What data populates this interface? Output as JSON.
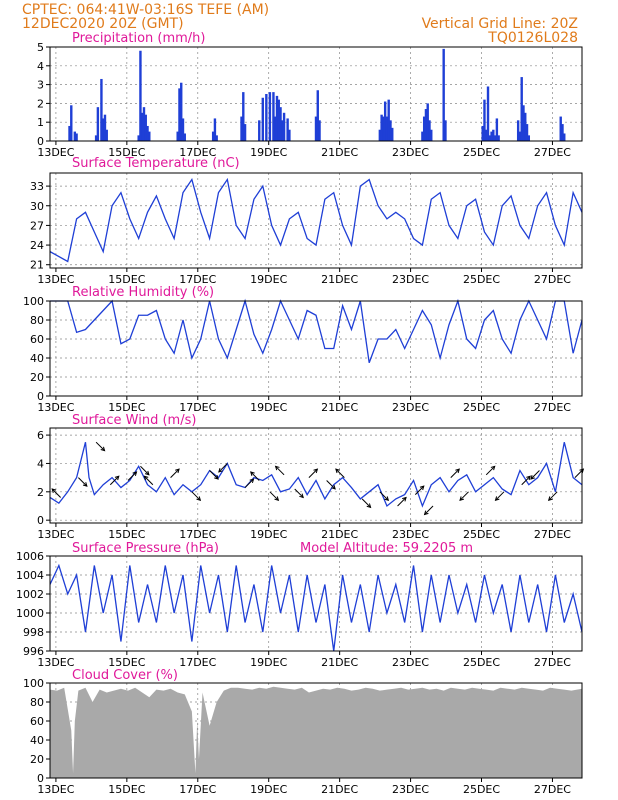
{
  "header": {
    "line1": "CPTEC:   064:41W-03:16S   TEFE (AM)",
    "line2": "12DEC2020 20Z (GMT)",
    "grid_note": "Vertical Grid Line: 20Z",
    "code": "TQ0126L028"
  },
  "x_axis": {
    "unit": "days since 12DEC2020 20Z",
    "range": [
      0,
      15
    ],
    "ticks": [
      {
        "t": 0.1667,
        "label": "13DEC"
      },
      {
        "t": 2.1667,
        "label": "15DEC"
      },
      {
        "t": 4.1667,
        "label": "17DEC"
      },
      {
        "t": 6.1667,
        "label": "19DEC"
      },
      {
        "t": 8.1667,
        "label": "21DEC"
      },
      {
        "t": 10.1667,
        "label": "23DEC"
      },
      {
        "t": 12.1667,
        "label": "25DEC"
      },
      {
        "t": 14.1667,
        "label": "27DEC"
      }
    ]
  },
  "colors": {
    "header": "#e07b1b",
    "title": "#e0199a",
    "line": "#1f3fd6",
    "bar": "#1f3fd6",
    "cloud": "#a9a9a9"
  },
  "chart_data": [
    {
      "type": "bar",
      "title": "Precipitation (mm/h)",
      "ylim": [
        0,
        5
      ],
      "yticks": [
        0,
        1,
        2,
        3,
        4,
        5
      ],
      "series": [
        {
          "name": "Precipitation",
          "x": [
            0.55,
            0.6,
            0.7,
            0.75,
            1.3,
            1.35,
            1.45,
            1.5,
            1.55,
            1.6,
            2.5,
            2.55,
            2.6,
            2.65,
            2.7,
            2.75,
            2.8,
            3.6,
            3.65,
            3.7,
            3.75,
            3.8,
            4.6,
            4.65,
            4.7,
            5.4,
            5.45,
            5.5,
            5.9,
            6.0,
            6.1,
            6.2,
            6.3,
            6.35,
            6.4,
            6.45,
            6.5,
            6.55,
            6.6,
            6.7,
            6.75,
            7.5,
            7.55,
            7.6,
            9.3,
            9.35,
            9.4,
            9.45,
            9.5,
            9.55,
            9.6,
            9.65,
            10.5,
            10.55,
            10.6,
            10.65,
            10.7,
            10.75,
            11.1,
            11.15,
            12.2,
            12.25,
            12.3,
            12.35,
            12.4,
            12.45,
            12.5,
            12.55,
            12.6,
            12.65,
            13.2,
            13.25,
            13.3,
            13.35,
            13.4,
            13.45,
            13.5,
            14.4,
            14.45,
            14.5
          ],
          "values": [
            0.8,
            1.9,
            0.5,
            0.4,
            0.3,
            1.8,
            3.3,
            1.2,
            1.4,
            0.6,
            0.3,
            4.8,
            1.5,
            1.8,
            1.4,
            0.8,
            0.5,
            0.5,
            2.8,
            3.1,
            1.2,
            0.4,
            0.5,
            1.2,
            0.3,
            1.3,
            2.6,
            0.9,
            1.1,
            2.3,
            2.5,
            2.6,
            2.6,
            1.3,
            2.4,
            2.2,
            1.8,
            1.1,
            1.5,
            1.2,
            0.6,
            1.3,
            2.7,
            1.1,
            0.6,
            1.4,
            1.3,
            2.1,
            1.3,
            2.2,
            1.1,
            0.7,
            0.5,
            1.3,
            1.7,
            2.0,
            1.1,
            0.6,
            4.9,
            1.1,
            0.8,
            2.2,
            0.6,
            2.9,
            0.3,
            0.5,
            0.6,
            0.3,
            1.2,
            0.3,
            1.1,
            0.5,
            3.4,
            1.9,
            1.5,
            0.9,
            0.3,
            1.3,
            0.9,
            0.4
          ]
        }
      ]
    },
    {
      "type": "line",
      "title": "Surface Temperature (nC)",
      "ylim": [
        20.5,
        35
      ],
      "yticks": [
        21,
        24,
        27,
        30,
        33
      ],
      "series": [
        {
          "name": "Temperature",
          "x": [
            0,
            0.5,
            0.75,
            1.0,
            1.25,
            1.5,
            1.75,
            2.0,
            2.25,
            2.5,
            2.75,
            3.0,
            3.25,
            3.5,
            3.75,
            4.0,
            4.25,
            4.5,
            4.75,
            5.0,
            5.25,
            5.5,
            5.75,
            6.0,
            6.25,
            6.5,
            6.75,
            7.0,
            7.25,
            7.5,
            7.75,
            8.0,
            8.25,
            8.5,
            8.75,
            9.0,
            9.25,
            9.5,
            9.75,
            10.0,
            10.25,
            10.5,
            10.75,
            11.0,
            11.25,
            11.5,
            11.75,
            12.0,
            12.25,
            12.5,
            12.75,
            13.0,
            13.25,
            13.5,
            13.75,
            14.0,
            14.25,
            14.5,
            14.75,
            15.0
          ],
          "values": [
            23,
            21.5,
            28,
            29,
            26,
            23,
            30,
            32,
            28,
            25,
            29,
            31.5,
            28,
            25,
            32,
            34,
            29,
            25,
            32,
            34,
            27,
            25,
            31,
            33,
            27,
            24,
            28,
            29,
            25,
            24,
            31,
            32,
            27,
            24,
            33,
            34,
            30,
            28,
            29,
            28,
            25,
            24,
            31,
            32,
            27,
            25,
            30,
            31,
            26,
            24,
            30,
            31.5,
            27,
            25,
            30,
            32,
            27,
            24,
            32,
            29
          ]
        }
      ]
    },
    {
      "type": "line",
      "title": "Relative Humidity (%)",
      "ylim": [
        0,
        100
      ],
      "yticks": [
        0,
        20,
        40,
        60,
        80,
        100
      ],
      "series": [
        {
          "name": "Relative Humidity",
          "x": [
            0,
            0.5,
            0.75,
            1.0,
            1.25,
            1.5,
            1.75,
            2.0,
            2.25,
            2.5,
            2.75,
            3.0,
            3.25,
            3.5,
            3.75,
            4.0,
            4.25,
            4.5,
            4.75,
            5.0,
            5.25,
            5.5,
            5.75,
            6.0,
            6.25,
            6.5,
            6.75,
            7.0,
            7.25,
            7.5,
            7.75,
            8.0,
            8.25,
            8.5,
            8.75,
            9.0,
            9.25,
            9.5,
            9.75,
            10.0,
            10.25,
            10.5,
            10.75,
            11.0,
            11.25,
            11.5,
            11.75,
            12.0,
            12.25,
            12.5,
            12.75,
            13.0,
            13.25,
            13.5,
            13.75,
            14.0,
            14.25,
            14.5,
            14.75,
            15.0
          ],
          "values": [
            100,
            100,
            67,
            70,
            80,
            90,
            100,
            55,
            60,
            85,
            85,
            90,
            60,
            45,
            80,
            40,
            60,
            100,
            60,
            40,
            70,
            100,
            65,
            45,
            70,
            100,
            80,
            60,
            90,
            85,
            50,
            50,
            95,
            70,
            100,
            35,
            60,
            60,
            70,
            50,
            70,
            90,
            75,
            40,
            75,
            100,
            60,
            50,
            80,
            90,
            60,
            45,
            80,
            100,
            80,
            60,
            100,
            100,
            45,
            80
          ]
        }
      ]
    },
    {
      "type": "line",
      "title": "Surface Wind (m/s)",
      "ylim": [
        -0.2,
        6.5
      ],
      "yticks": [
        0,
        2,
        4,
        6
      ],
      "series": [
        {
          "name": "Wind speed",
          "x": [
            0,
            0.25,
            0.5,
            0.75,
            1.0,
            1.1,
            1.25,
            1.5,
            1.75,
            2.0,
            2.25,
            2.5,
            2.75,
            3.0,
            3.25,
            3.5,
            3.75,
            4.0,
            4.25,
            4.5,
            4.75,
            5.0,
            5.25,
            5.5,
            5.75,
            6.0,
            6.25,
            6.5,
            6.75,
            7.0,
            7.25,
            7.5,
            7.75,
            8.0,
            8.25,
            8.5,
            8.75,
            9.0,
            9.25,
            9.5,
            9.75,
            10.0,
            10.25,
            10.5,
            10.75,
            11.0,
            11.25,
            11.5,
            11.75,
            12.0,
            12.25,
            12.5,
            12.75,
            13.0,
            13.25,
            13.5,
            13.75,
            14.0,
            14.25,
            14.5,
            14.75,
            15.0
          ],
          "values": [
            1.6,
            1.2,
            2.0,
            3.0,
            5.5,
            3.0,
            1.8,
            2.5,
            3.0,
            2.3,
            2.8,
            3.8,
            2.5,
            2.0,
            3.0,
            1.8,
            2.5,
            2.0,
            2.5,
            3.5,
            3.0,
            4.0,
            2.5,
            2.3,
            3.0,
            2.8,
            3.2,
            2.0,
            2.2,
            3.0,
            1.8,
            2.8,
            1.5,
            2.5,
            3.0,
            2.3,
            1.5,
            2.0,
            2.5,
            1.0,
            1.5,
            1.8,
            2.8,
            1.0,
            2.5,
            3.0,
            2.0,
            2.8,
            3.2,
            2.0,
            2.5,
            3.0,
            2.2,
            1.8,
            3.5,
            2.5,
            3.0,
            4.0,
            2.0,
            5.5,
            3.0,
            2.5
          ]
        }
      ],
      "wind_vectors": {
        "x": [
          0.3,
          0.8,
          1.3,
          1.7,
          2.2,
          2.55,
          2.9,
          3.4,
          4.0,
          4.5,
          5.0,
          5.5,
          5.9,
          6.2,
          6.6,
          6.9,
          7.3,
          7.8,
          8.3,
          8.8,
          9.3,
          9.8,
          10.3,
          10.8,
          11.3,
          11.8,
          12.3,
          12.8,
          13.3,
          13.8,
          14.3,
          14.8
        ],
        "speed": [
          1.6,
          3.0,
          5.5,
          2.5,
          2.8,
          3.8,
          2.5,
          3.0,
          2.0,
          3.5,
          4.0,
          2.3,
          2.8,
          2.0,
          3.2,
          2.2,
          3.0,
          2.8,
          3.0,
          1.5,
          2.0,
          1.0,
          1.8,
          1.0,
          3.0,
          2.0,
          3.2,
          2.0,
          2.5,
          3.5,
          2.0,
          3.0
        ],
        "u": [
          -1,
          1,
          1,
          1,
          1,
          1,
          -1,
          1,
          1,
          1,
          -1,
          1,
          -1,
          1,
          -1,
          1,
          1,
          1,
          -1,
          1,
          1,
          1,
          1,
          -1,
          1,
          -1,
          1,
          -1,
          1,
          -1,
          -1,
          1
        ],
        "v": [
          1,
          -1,
          -1,
          1,
          1,
          -1,
          1,
          1,
          -1,
          -1,
          -1,
          1,
          1,
          -1,
          1,
          -1,
          1,
          -1,
          1,
          -1,
          -1,
          1,
          1,
          -1,
          1,
          -1,
          1,
          -1,
          1,
          -1,
          -1,
          1
        ]
      }
    },
    {
      "type": "line",
      "title": "Surface Pressure (hPa)",
      "annotation": "Model Altitude: 59.2205 m",
      "ylim": [
        996,
        1006
      ],
      "yticks": [
        996,
        998,
        1000,
        1002,
        1004,
        1006
      ],
      "series": [
        {
          "name": "Surface pressure",
          "x": [
            0,
            0.25,
            0.5,
            0.75,
            1.0,
            1.25,
            1.5,
            1.75,
            2.0,
            2.25,
            2.5,
            2.75,
            3.0,
            3.25,
            3.5,
            3.75,
            4.0,
            4.25,
            4.5,
            4.75,
            5.0,
            5.25,
            5.5,
            5.75,
            6.0,
            6.25,
            6.5,
            6.75,
            7.0,
            7.25,
            7.5,
            7.75,
            8.0,
            8.25,
            8.5,
            8.75,
            9.0,
            9.25,
            9.5,
            9.75,
            10.0,
            10.25,
            10.5,
            10.75,
            11.0,
            11.25,
            11.5,
            11.75,
            12.0,
            12.25,
            12.5,
            12.75,
            13.0,
            13.25,
            13.5,
            13.75,
            14.0,
            14.25,
            14.5,
            14.75,
            15.0
          ],
          "values": [
            1003,
            1005,
            1002,
            1004,
            998,
            1005,
            1000,
            1004,
            997,
            1005,
            999,
            1003,
            999,
            1005,
            1000,
            1004,
            997,
            1005,
            1000,
            1004,
            998,
            1005,
            999,
            1003,
            998,
            1005,
            1000,
            1004,
            998,
            1004,
            999,
            1003,
            996,
            1004,
            999,
            1003,
            998,
            1004,
            1000,
            1003,
            999,
            1005,
            998,
            1004,
            999,
            1004,
            1000,
            1003,
            999,
            1004,
            1000,
            1003,
            998,
            1004,
            999,
            1003,
            998,
            1004,
            999,
            1002,
            998
          ]
        }
      ]
    },
    {
      "type": "area",
      "title": "Cloud Cover (%)",
      "ylim": [
        0,
        100
      ],
      "yticks": [
        0,
        20,
        40,
        60,
        80,
        100
      ],
      "series": [
        {
          "name": "Cloud cover",
          "x": [
            0,
            0.2,
            0.4,
            0.6,
            0.65,
            0.7,
            0.8,
            1.0,
            1.2,
            1.4,
            1.6,
            1.8,
            2.0,
            2.2,
            2.4,
            2.6,
            2.8,
            3.0,
            3.2,
            3.4,
            3.6,
            3.8,
            4.0,
            4.1,
            4.15,
            4.2,
            4.3,
            4.5,
            4.7,
            4.9,
            5.1,
            5.3,
            5.5,
            5.7,
            5.9,
            6.1,
            6.3,
            6.5,
            6.7,
            6.9,
            7.1,
            7.3,
            7.5,
            7.7,
            7.9,
            8.1,
            8.3,
            8.5,
            8.7,
            8.9,
            9.1,
            9.3,
            9.5,
            9.7,
            9.9,
            10.1,
            10.3,
            10.5,
            10.7,
            10.9,
            11.1,
            11.3,
            11.5,
            11.7,
            11.9,
            12.1,
            12.3,
            12.5,
            12.7,
            12.9,
            13.1,
            13.3,
            13.5,
            13.7,
            13.9,
            14.1,
            14.3,
            14.5,
            14.7,
            15.0
          ],
          "values": [
            93,
            92,
            95,
            50,
            5,
            60,
            92,
            95,
            80,
            93,
            90,
            92,
            94,
            92,
            95,
            90,
            85,
            93,
            92,
            94,
            90,
            88,
            70,
            5,
            60,
            20,
            90,
            55,
            80,
            92,
            95,
            95,
            94,
            93,
            95,
            94,
            96,
            95,
            94,
            93,
            95,
            90,
            92,
            94,
            93,
            95,
            94,
            92,
            93,
            95,
            94,
            92,
            93,
            94,
            95,
            93,
            94,
            95,
            93,
            94,
            92,
            95,
            94,
            93,
            95,
            94,
            93,
            92,
            95,
            94,
            93,
            95,
            94,
            93,
            92,
            95,
            94,
            93,
            92,
            94
          ]
        }
      ]
    }
  ]
}
